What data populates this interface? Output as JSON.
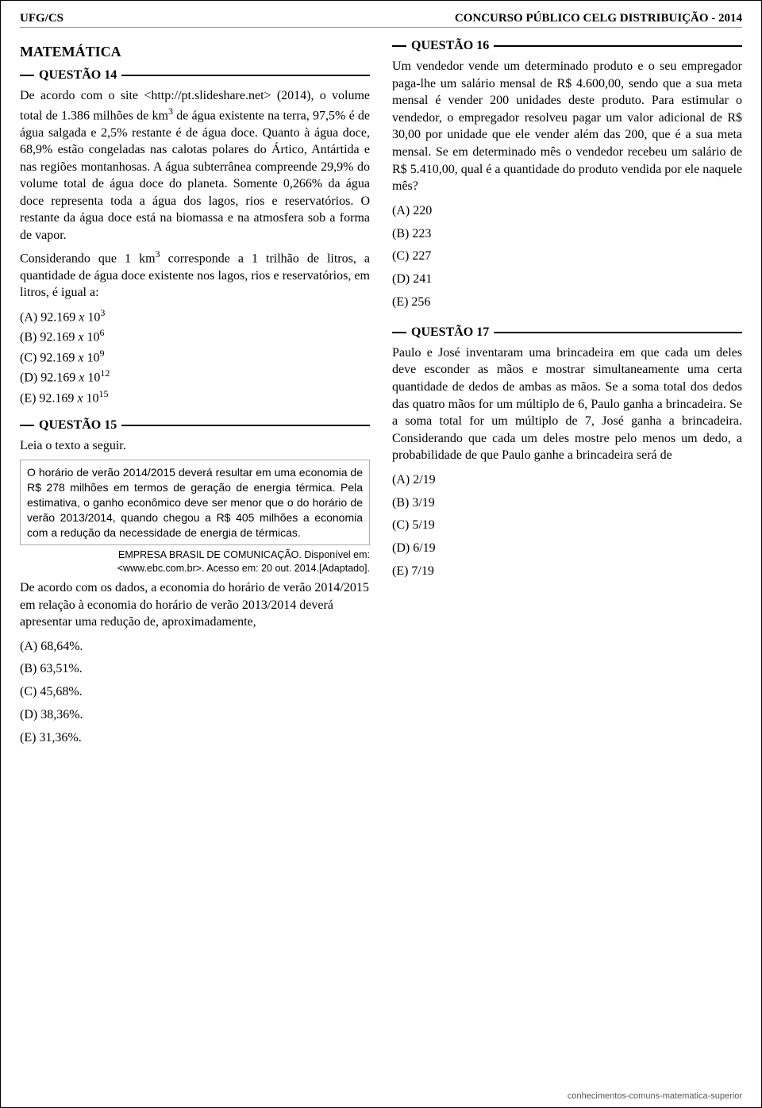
{
  "header": {
    "left": "UFG/CS",
    "right": "CONCURSO PÚBLICO CELG DISTRIBUIÇÃO - 2014"
  },
  "section_title": "MATEMÁTICA",
  "q14": {
    "label": "QUESTÃO 14",
    "para1_a": "De acordo com o site <http://pt.slideshare.net> (2014), o volume total de 1.386 milhões de km",
    "para1_b": " de água existente na terra, 97,5% é de água salgada e 2,5% restante é de água doce. Quanto à água doce, 68,9% estão congeladas nas calotas polares do Ártico, Antártida e nas regiões montanhosas. A água subterrânea compreende 29,9% do volume total de água doce do planeta. Somente 0,266% da água doce representa toda a água dos lagos, rios e reservatórios. O restante da água doce está na biomassa e na atmosfera sob a forma de vapor.",
    "para2_a": "Considerando que 1 km",
    "para2_b": " corresponde a 1 trilhão de litros, a quantidade de água doce existente nos lagos, rios e reservatórios, em litros, é igual a:",
    "optA_pre": "(A)  92.169 ",
    "optA_x": "x",
    "optA_post": " 10",
    "optA_exp": "3",
    "optB_pre": "(B)  92.169 ",
    "optB_exp": "6",
    "optC_pre": "(C)  92.169 ",
    "optC_exp": "9",
    "optD_pre": "(D)  92.169 ",
    "optD_exp": "12",
    "optE_pre": "(E)  92.169 ",
    "optE_exp": "15"
  },
  "q15": {
    "label": "QUESTÃO 15",
    "lead": "Leia o texto a seguir.",
    "box": "O horário de verão 2014/2015 deverá resultar em uma economia de R$ 278 milhões em termos de geração de energia térmica. Pela estimativa, o ganho econômico deve ser menor que o do horário de verão 2013/2014, quando chegou a R$ 405 milhões a economia com a redução da necessidade de energia de térmicas.",
    "source1": "EMPRESA BRASIL DE COMUNICAÇÃO. Disponível em:",
    "source2": "<www.ebc.com.br>. Acesso em: 20 out. 2014.[Adaptado].",
    "para": "De acordo com os dados, a economia do horário de verão 2014/2015 em relação à economia do horário de verão 2013/2014 deverá apresentar uma redução de, aproximadamente,",
    "optA": "(A)  68,64%.",
    "optB": "(B)  63,51%.",
    "optC": "(C)  45,68%.",
    "optD": "(D)  38,36%.",
    "optE": "(E)  31,36%."
  },
  "q16": {
    "label": "QUESTÃO 16",
    "para": "Um vendedor vende um determinado produto e o seu empregador paga-lhe um salário mensal de R$ 4.600,00, sendo que a sua meta mensal é vender 200 unidades deste produto. Para estimular o vendedor, o empregador resolveu pagar um valor adicional de R$ 30,00 por unidade que ele vender além das 200, que é a sua meta mensal. Se em  determinado mês o vendedor recebeu um salário de  R$ 5.410,00, qual é a quantidade do produto vendida por ele naquele mês?",
    "optA": "(A)  220",
    "optB": "(B)  223",
    "optC": "(C)  227",
    "optD": "(D)  241",
    "optE": "(E)  256"
  },
  "q17": {
    "label": "QUESTÃO 17",
    "para": "Paulo e José inventaram uma brincadeira em que cada um deles deve esconder as mãos e mostrar simultaneamente uma certa quantidade de dedos de ambas as mãos. Se a soma total dos dedos das quatro mãos for um múltiplo de 6, Paulo ganha a brincadeira. Se a soma total for um múltiplo de 7, José ganha a brincadeira. Considerando que cada um deles mostre pelo menos um dedo, a probabilidade de que Paulo ganhe a brincadeira será de",
    "optA": "(A)  2/19",
    "optB": "(B)  3/19",
    "optC": "(C)  5/19",
    "optD": "(D)  6/19",
    "optE": "(E)  7/19"
  },
  "footer": "conhecimentos-comuns-matematica-superior"
}
